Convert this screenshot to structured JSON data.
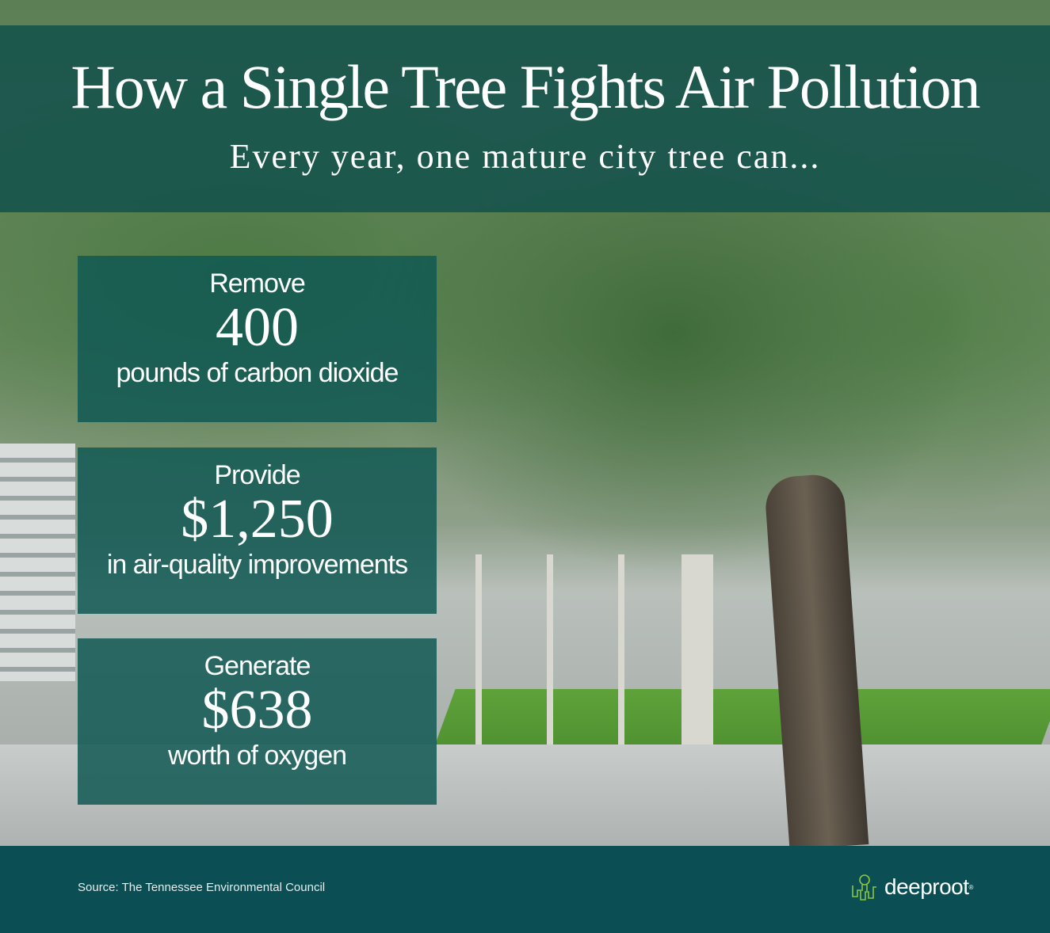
{
  "header": {
    "title": "How a Single Tree Fights Air Pollution",
    "subtitle": "Every year, one mature city tree can..."
  },
  "facts": [
    {
      "verb": "Remove",
      "value": "400",
      "description": "pounds of carbon dioxide"
    },
    {
      "verb": "Provide",
      "value": "$1,250",
      "description": "in air-quality improvements"
    },
    {
      "verb": "Generate",
      "value": "$638",
      "description": "worth of oxygen"
    }
  ],
  "footer": {
    "source": "Source: The Tennessee Environmental Council",
    "logo_text": "deeproot",
    "logo_mark": "®"
  },
  "colors": {
    "panel": "#14524c",
    "footer": "#0b4f55",
    "logo_green": "#8dc63f"
  },
  "icons": {
    "logo": "tree-roots-icon"
  }
}
